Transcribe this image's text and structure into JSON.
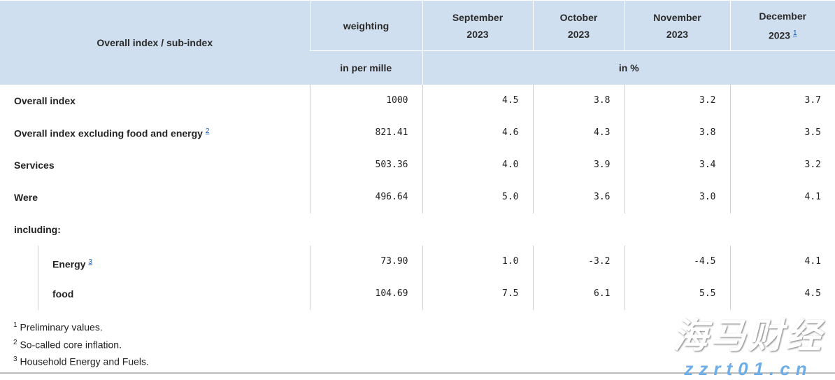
{
  "header": {
    "col0": "Overall index / sub-index",
    "weighting": "weighting",
    "weighting_unit": "in per mille",
    "months": [
      {
        "month": "September",
        "year": "2023"
      },
      {
        "month": "October",
        "year": "2023"
      },
      {
        "month": "November",
        "year": "2023"
      },
      {
        "month": "December",
        "year": "2023",
        "note": "1"
      }
    ],
    "values_unit": "in %"
  },
  "rows": [
    {
      "label": "Overall index",
      "weight": "1000",
      "values": [
        "4.5",
        "3.8",
        "3.2",
        "3.7"
      ]
    },
    {
      "label": "Overall index excluding food and energy",
      "note": "2",
      "weight": "821.41",
      "values": [
        "4.6",
        "4.3",
        "3.8",
        "3.5"
      ]
    },
    {
      "label": "Services",
      "weight": "503.36",
      "values": [
        "4.0",
        "3.9",
        "3.4",
        "3.2"
      ]
    },
    {
      "label": "Were",
      "weight": "496.64",
      "values": [
        "5.0",
        "3.6",
        "3.0",
        "4.1"
      ]
    }
  ],
  "including_label": "including:",
  "subrows": [
    {
      "label": "Energy",
      "note": "3",
      "weight": "73.90",
      "values": [
        "1.0",
        "-3.2",
        "-4.5",
        "4.1"
      ]
    },
    {
      "label": "food",
      "weight": "104.69",
      "values": [
        "7.5",
        "6.1",
        "5.5",
        "4.5"
      ]
    }
  ],
  "footnotes": [
    {
      "n": "1",
      "text": "Preliminary values."
    },
    {
      "n": "2",
      "text": "So-called core inflation."
    },
    {
      "n": "3",
      "text": "Household Energy and Fuels."
    }
  ],
  "watermark": {
    "text": "海马财经",
    "url": "zzrt01.cn"
  }
}
